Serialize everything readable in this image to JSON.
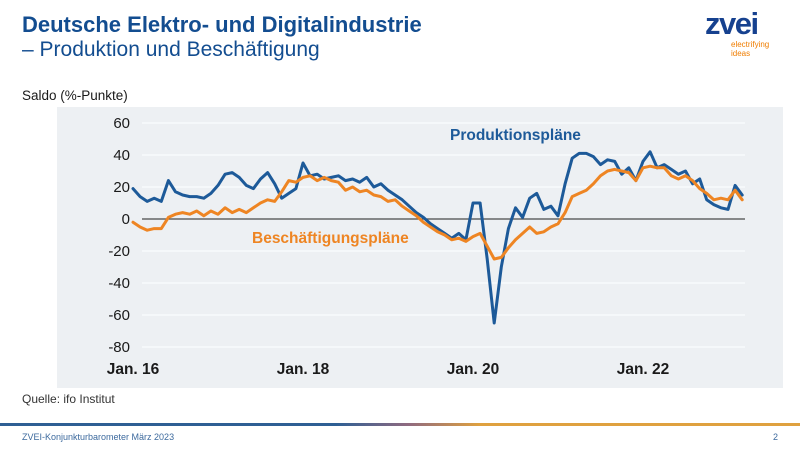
{
  "header": {
    "title_line1": "Deutsche Elektro- und Digitalindustrie",
    "title_line2": "– Produktion und Beschäftigung"
  },
  "logo": {
    "wordmark": "zvei",
    "tagline_line1": "electrifying",
    "tagline_line2": "ideas"
  },
  "chart_data": {
    "type": "line",
    "title": "",
    "ylabel": "Saldo (%-Punkte)",
    "xlabel": "",
    "frequency": "monthly",
    "x_start": "Jan 2016",
    "x_end": "Mär 2023",
    "ylim": [
      -80,
      65
    ],
    "grid": true,
    "zero_line": true,
    "legend_position": "inline-labels",
    "y_ticks": [
      60,
      40,
      20,
      0,
      -20,
      -40,
      -60,
      -80
    ],
    "x_ticks": [
      {
        "label": "Jan. 16",
        "month": 0
      },
      {
        "label": "Jan. 18",
        "month": 24
      },
      {
        "label": "Jan. 20",
        "month": 48
      },
      {
        "label": "Jan. 22",
        "month": 72
      }
    ],
    "series": [
      {
        "name": "Produktionspläne",
        "color": "#1d5a99",
        "values": [
          19,
          14,
          11,
          13,
          11,
          24,
          17,
          15,
          14,
          14,
          13,
          16,
          21,
          28,
          29,
          26,
          21,
          19,
          25,
          29,
          22,
          13,
          16,
          19,
          35,
          27,
          28,
          25,
          26,
          27,
          24,
          25,
          23,
          26,
          20,
          22,
          18,
          15,
          12,
          8,
          4,
          1,
          -3,
          -6,
          -9,
          -12,
          -9,
          -13,
          10,
          10,
          -25,
          -65,
          -30,
          -6,
          7,
          1,
          13,
          16,
          6,
          8,
          2,
          22,
          38,
          41,
          41,
          39,
          34,
          37,
          36,
          28,
          32,
          24,
          36,
          42,
          32,
          34,
          31,
          28,
          30,
          22,
          25,
          12,
          9,
          7,
          6,
          21,
          15
        ]
      },
      {
        "name": "Beschäftigungspläne",
        "color": "#ee8523",
        "values": [
          -2,
          -5,
          -7,
          -6,
          -6,
          1,
          3,
          4,
          3,
          5,
          2,
          5,
          3,
          7,
          4,
          6,
          4,
          7,
          10,
          12,
          11,
          17,
          24,
          23,
          26,
          27,
          24,
          26,
          24,
          23,
          18,
          20,
          17,
          18,
          15,
          14,
          11,
          12,
          8,
          5,
          2,
          -2,
          -5,
          -8,
          -10,
          -13,
          -12,
          -14,
          -11,
          -9,
          -17,
          -25,
          -24,
          -18,
          -13,
          -9,
          -5,
          -9,
          -8,
          -5,
          -3,
          4,
          14,
          16,
          18,
          22,
          27,
          30,
          31,
          30,
          29,
          24,
          32,
          33,
          32,
          32,
          27,
          25,
          27,
          24,
          19,
          16,
          12,
          13,
          12,
          18,
          12
        ]
      }
    ]
  },
  "source_note": "Quelle: ifo Institut",
  "footer": {
    "label": "ZVEI-Konjunkturbarometer März 2023",
    "page": "2"
  },
  "colors": {
    "title_blue": "#134d90",
    "logo_blue": "#16418f",
    "logo_orange": "#ef7d00",
    "panel_bg": "#edf0f3",
    "grid": "#f8fafc",
    "zero_line": "#4a4a4a",
    "tick_text": "#1a1a1a",
    "footer_blue": "#3d6a9e"
  }
}
